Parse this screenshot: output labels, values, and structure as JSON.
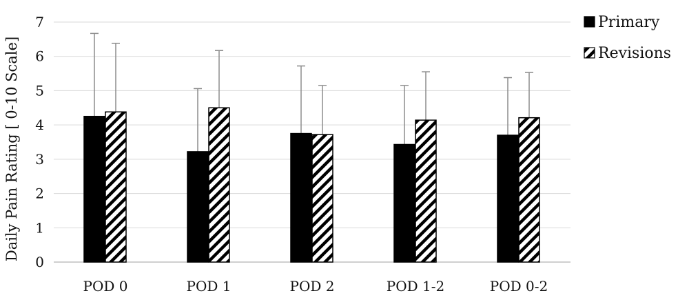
{
  "chart_data": {
    "type": "bar",
    "ylabel": "Daily Pain Rating [ 0-10 Scale]",
    "xlabel": "",
    "ylim": [
      0,
      7
    ],
    "yticks": [
      "0",
      "1",
      "2",
      "3",
      "4",
      "5",
      "6",
      "7"
    ],
    "grid": true,
    "legend_position": "top-right",
    "categories": [
      "POD 0",
      "POD 1",
      "POD 2",
      "POD 1-2",
      "POD 0-2"
    ],
    "series": [
      {
        "name": "Primary",
        "pattern": "solid",
        "color": "#000000",
        "values": [
          4.25,
          3.22,
          3.75,
          3.43,
          3.7
        ],
        "error_upper": [
          6.67,
          5.06,
          5.72,
          5.15,
          5.38
        ]
      },
      {
        "name": "Revisions",
        "pattern": "diagonal-hatch",
        "color": "#000000",
        "values": [
          4.38,
          4.5,
          3.72,
          4.14,
          4.21
        ],
        "error_upper": [
          6.38,
          6.17,
          5.15,
          5.55,
          5.53
        ]
      }
    ]
  }
}
